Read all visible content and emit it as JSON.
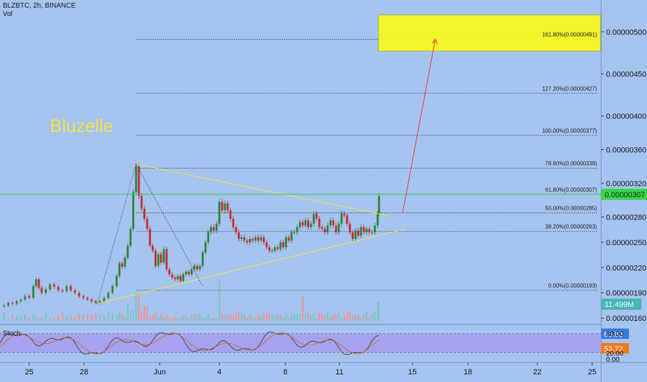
{
  "header": {
    "symbol_line": "BLZBTC, 2h, BINANCE",
    "sub_line": "Vol"
  },
  "brand_text": "Bluzelle",
  "stoch_label": "Stoch",
  "colors": {
    "background": "#a6c4f0",
    "up_candle": "#2e7d32",
    "down_candle": "#c62828",
    "volume_up": "#7fc6c9",
    "volume_down": "#e59aa0",
    "fib_line": "#333333",
    "triangle": "#f2e34a",
    "target_box": "#f7f722",
    "arrow": "#e53935",
    "current_price_line": "#3cd34a",
    "stoch_band": "#a79af0",
    "stoch_k": "#3d3d3d",
    "stoch_d": "#c96d2b"
  },
  "chart_data": {
    "type": "candlestick",
    "title": "BLZBTC, 2h, BINANCE",
    "ylim": [
      1.5e-06,
      5.3e-06
    ],
    "price_axis_ticks": [
      "0.00000500",
      "0.00000450",
      "0.00000400",
      "0.00000360",
      "0.00000320",
      "0.00000280",
      "0.00000250",
      "0.00000220",
      "0.00000190",
      "0.00000160"
    ],
    "x_ticks": [
      "25",
      "28",
      "Jun",
      "4",
      "8",
      "11",
      "15",
      "18",
      "22",
      "25"
    ],
    "fib_levels": [
      {
        "label": "161.80%(0.00000491)",
        "value": 4.91e-06
      },
      {
        "label": "127.20%(0.00000427)",
        "value": 4.27e-06
      },
      {
        "label": "100.00%(0.00000377)",
        "value": 3.77e-06
      },
      {
        "label": "78.60%(0.00000338)",
        "value": 3.38e-06
      },
      {
        "label": "61.80%(0.00000307)",
        "value": 3.07e-06
      },
      {
        "label": "50.00%(0.00000285)",
        "value": 2.85e-06
      },
      {
        "label": "38.20%(0.00000263)",
        "value": 2.63e-06
      },
      {
        "label": "0.00%(0.00000193)",
        "value": 1.93e-06
      }
    ],
    "current_price": "0.00000307",
    "volume_badge": "11.499M",
    "stoch": {
      "k_badge": "65.83",
      "d_badge": "53.72",
      "ticks": [
        "80.00",
        "20.00",
        "0.00"
      ],
      "band": [
        20,
        80
      ]
    },
    "price_path": [
      [
        0,
        1.74e-06
      ],
      [
        6,
        1.75e-06
      ],
      [
        12,
        1.78e-06
      ],
      [
        18,
        1.77e-06
      ],
      [
        24,
        1.8e-06
      ],
      [
        30,
        1.82e-06
      ],
      [
        36,
        1.86e-06
      ],
      [
        42,
        1.84e-06
      ],
      [
        48,
        1.98e-06
      ],
      [
        52,
        2.06e-06
      ],
      [
        56,
        1.96e-06
      ],
      [
        60,
        1.9e-06
      ],
      [
        66,
        1.94e-06
      ],
      [
        72,
        2e-06
      ],
      [
        78,
        1.97e-06
      ],
      [
        84,
        1.93e-06
      ],
      [
        90,
        1.92e-06
      ],
      [
        96,
        1.98e-06
      ],
      [
        102,
        1.93e-06
      ],
      [
        108,
        1.9e-06
      ],
      [
        114,
        1.86e-06
      ],
      [
        120,
        1.84e-06
      ],
      [
        126,
        1.82e-06
      ],
      [
        132,
        1.8e-06
      ],
      [
        138,
        1.78e-06
      ],
      [
        144,
        1.8e-06
      ],
      [
        150,
        1.84e-06
      ],
      [
        156,
        1.9e-06
      ],
      [
        162,
        1.98e-06
      ],
      [
        168,
        2.1e-06
      ],
      [
        172,
        2.25e-06
      ],
      [
        176,
        2.21e-06
      ],
      [
        180,
        2.32e-06
      ],
      [
        184,
        2.46e-06
      ],
      [
        188,
        2.66e-06
      ],
      [
        192,
        3.1e-06
      ],
      [
        196,
        3.4e-06
      ],
      [
        200,
        3.05e-06
      ],
      [
        204,
        2.9e-06
      ],
      [
        208,
        2.78e-06
      ],
      [
        212,
        2.66e-06
      ],
      [
        216,
        2.46e-06
      ],
      [
        220,
        2.4e-06
      ],
      [
        224,
        2.22e-06
      ],
      [
        228,
        2.36e-06
      ],
      [
        232,
        2.26e-06
      ],
      [
        236,
        2.42e-06
      ],
      [
        240,
        2.18e-06
      ],
      [
        244,
        2.12e-06
      ],
      [
        248,
        2.08e-06
      ],
      [
        252,
        2.06e-06
      ],
      [
        256,
        2.1e-06
      ],
      [
        260,
        2.04e-06
      ],
      [
        264,
        2.12e-06
      ],
      [
        268,
        2.15e-06
      ],
      [
        272,
        2.12e-06
      ],
      [
        276,
        2.18e-06
      ],
      [
        280,
        2.22e-06
      ],
      [
        284,
        2.18e-06
      ],
      [
        288,
        2.22e-06
      ],
      [
        292,
        2.38e-06
      ],
      [
        296,
        2.5e-06
      ],
      [
        300,
        2.62e-06
      ],
      [
        304,
        2.68e-06
      ],
      [
        308,
        2.64e-06
      ],
      [
        312,
        2.72e-06
      ],
      [
        316,
        2.98e-06
      ],
      [
        320,
        2.88e-06
      ],
      [
        324,
        2.96e-06
      ],
      [
        328,
        2.88e-06
      ],
      [
        332,
        2.78e-06
      ],
      [
        336,
        2.68e-06
      ],
      [
        340,
        2.62e-06
      ],
      [
        344,
        2.54e-06
      ],
      [
        348,
        2.56e-06
      ],
      [
        352,
        2.52e-06
      ],
      [
        356,
        2.5e-06
      ],
      [
        360,
        2.54e-06
      ],
      [
        364,
        2.52e-06
      ],
      [
        368,
        2.56e-06
      ],
      [
        372,
        2.52e-06
      ],
      [
        376,
        2.56e-06
      ],
      [
        380,
        2.5e-06
      ],
      [
        384,
        2.44e-06
      ],
      [
        388,
        2.4e-06
      ],
      [
        392,
        2.4e-06
      ],
      [
        396,
        2.44e-06
      ],
      [
        400,
        2.42e-06
      ],
      [
        404,
        2.5e-06
      ],
      [
        408,
        2.44e-06
      ],
      [
        412,
        2.56e-06
      ],
      [
        416,
        2.52e-06
      ],
      [
        420,
        2.62e-06
      ],
      [
        424,
        2.62e-06
      ],
      [
        428,
        2.68e-06
      ],
      [
        432,
        2.74e-06
      ],
      [
        436,
        2.7e-06
      ],
      [
        440,
        2.76e-06
      ],
      [
        444,
        2.68e-06
      ],
      [
        448,
        2.72e-06
      ],
      [
        452,
        2.84e-06
      ],
      [
        456,
        2.78e-06
      ],
      [
        460,
        2.68e-06
      ],
      [
        464,
        2.66e-06
      ],
      [
        468,
        2.62e-06
      ],
      [
        472,
        2.7e-06
      ],
      [
        476,
        2.76e-06
      ],
      [
        480,
        2.7e-06
      ],
      [
        484,
        2.62e-06
      ],
      [
        488,
        2.72e-06
      ],
      [
        492,
        2.84e-06
      ],
      [
        496,
        2.82e-06
      ],
      [
        500,
        2.72e-06
      ],
      [
        504,
        2.62e-06
      ],
      [
        508,
        2.54e-06
      ],
      [
        512,
        2.64e-06
      ],
      [
        516,
        2.58e-06
      ],
      [
        520,
        2.68e-06
      ],
      [
        524,
        2.62e-06
      ],
      [
        528,
        2.66e-06
      ],
      [
        532,
        2.62e-06
      ],
      [
        536,
        2.62e-06
      ],
      [
        540,
        2.7e-06
      ],
      [
        544,
        2.84e-06
      ],
      [
        546,
        3.05e-06
      ]
    ]
  }
}
